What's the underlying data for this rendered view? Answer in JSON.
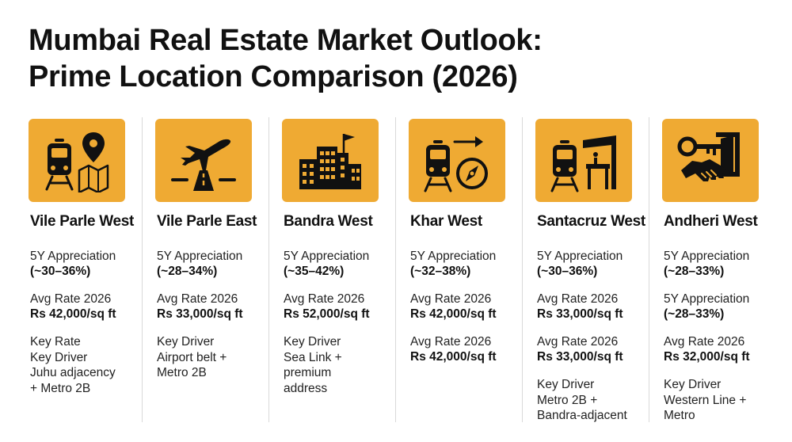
{
  "title": {
    "line1": "Mumbai Real Estate Market Outlook:",
    "line2": "Prime Location Comparison (2026)"
  },
  "colors": {
    "icon_bg": "#efaa33",
    "icon_fg": "#111111"
  },
  "locations": [
    {
      "name": "Vile Parle West",
      "icon": "train-map-pin-icon",
      "appreciation_label": "5Y Appreciation",
      "appreciation_value": "(~30–36%)",
      "rate_label": "Avg Rate 2026",
      "rate_value": "Rs 42,000/sq ft",
      "driver_lines": [
        "Key Rate",
        "Key Driver",
        "Juhu adjacency",
        "+ Metro 2B"
      ]
    },
    {
      "name": "Vile Parle East",
      "icon": "airplane-runway-icon",
      "appreciation_label": "5Y Appreciation",
      "appreciation_value": "(~28–34%)",
      "rate_label": "Avg Rate 2026",
      "rate_value": "Rs 33,000/sq ft",
      "driver_lines": [
        "Key Driver",
        "Airport belt +",
        "Metro 2B"
      ]
    },
    {
      "name": "Bandra West",
      "icon": "city-buildings-flag-icon",
      "appreciation_label": "5Y Appreciation",
      "appreciation_value": "(~35–42%)",
      "rate_label": "Avg Rate 2026",
      "rate_value": "Rs 52,000/sq ft",
      "driver_lines": [
        "Key Driver",
        "Sea Link +",
        "premium",
        "address"
      ]
    },
    {
      "name": "Khar West",
      "icon": "train-compass-icon",
      "appreciation_label": "5Y Appreciation",
      "appreciation_value": "(~32–38%)",
      "rate_label": "Avg Rate 2026",
      "rate_value": "Rs 42,000/sq ft",
      "rate_label_2": "Avg Rate 2026",
      "rate_value_2": "Rs 42,000/sq ft"
    },
    {
      "name": "Santacruz West",
      "icon": "train-station-kiosk-icon",
      "appreciation_label": "5Y Appreciation",
      "appreciation_value": "(~30–36%)",
      "rate_label": "Avg Rate 2026",
      "rate_value": "Rs 33,000/sq ft",
      "rate_label_2": "Avg Rate 2026",
      "rate_value_2": "Rs 33,000/sq ft",
      "driver_lines": [
        "Key Driver",
        "Metro 2B +",
        "Bandra-adjacent"
      ]
    },
    {
      "name": "Andheri West",
      "icon": "key-handshake-door-icon",
      "appreciation_label": "5Y Appreciation",
      "appreciation_value": "(~28–33%)",
      "appreciation_label_2": "5Y Appreciation",
      "appreciation_value_2": "(~28–33%)",
      "rate_label": "Avg Rate 2026",
      "rate_value": "Rs 32,000/sq ft",
      "driver_lines": [
        "Key Driver",
        "Western Line +",
        "Metro"
      ]
    }
  ]
}
